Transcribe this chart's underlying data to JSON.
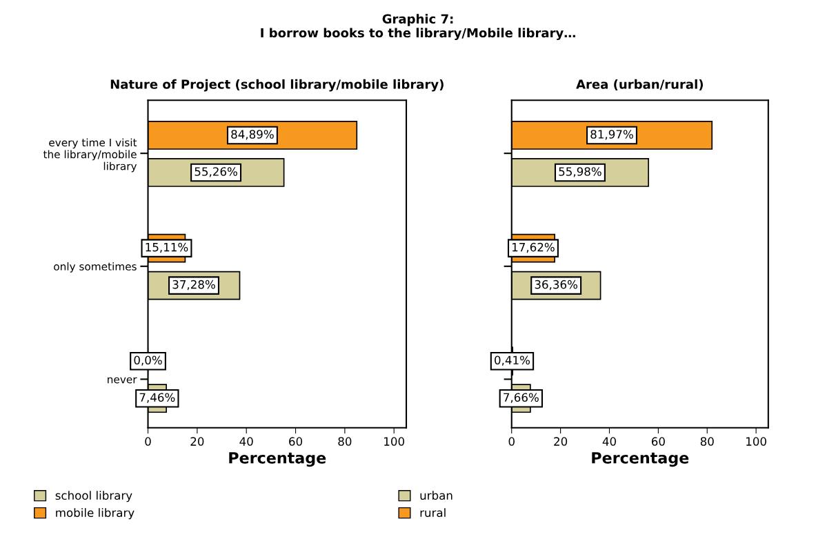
{
  "chart_data": [
    {
      "type": "bar",
      "orientation": "horizontal",
      "title": "Nature of Project (school library/mobile library)",
      "annotations": [
        "Graphic 7:\nI borrow books to the library/Mobile library…"
      ],
      "xlabel": "Percentage",
      "categories": [
        "every time I visit\nthe library/mobile\nlibrary",
        "only sometimes",
        "never"
      ],
      "xlim": [
        0,
        105
      ],
      "xticks": [
        0,
        20,
        40,
        60,
        80,
        100
      ],
      "grid": false,
      "legend": "bottom",
      "series": [
        {
          "name": "mobile library",
          "color": "#f7981f",
          "values": [
            84.89,
            15.11,
            0.0
          ],
          "value_labels": [
            "84,89%",
            "15,11%",
            "0,0%"
          ]
        },
        {
          "name": "school library",
          "color": "#d4cf9b",
          "values": [
            55.26,
            37.28,
            7.46
          ],
          "value_labels": [
            "55,26%",
            "37,28%",
            "7,46%"
          ]
        }
      ]
    },
    {
      "type": "bar",
      "orientation": "horizontal",
      "title": "Area (urban/rural)",
      "xlabel": "Percentage",
      "categories": [
        null,
        null,
        null
      ],
      "tick_labels": "x",
      "xlim": [
        0,
        105
      ],
      "xticks": [
        0,
        20,
        40,
        60,
        80,
        100
      ],
      "grid": false,
      "legend": "bottom",
      "series": [
        {
          "name": "rural",
          "color": "#f7981f",
          "values": [
            81.97,
            17.62,
            0.41
          ],
          "value_labels": [
            "81,97%",
            "17,62%",
            "0,41%"
          ]
        },
        {
          "name": "urban",
          "color": "#d4cf9b",
          "values": [
            55.98,
            36.36,
            7.66
          ],
          "value_labels": [
            "55,98%",
            "36,36%",
            "7,66%"
          ]
        }
      ]
    }
  ]
}
